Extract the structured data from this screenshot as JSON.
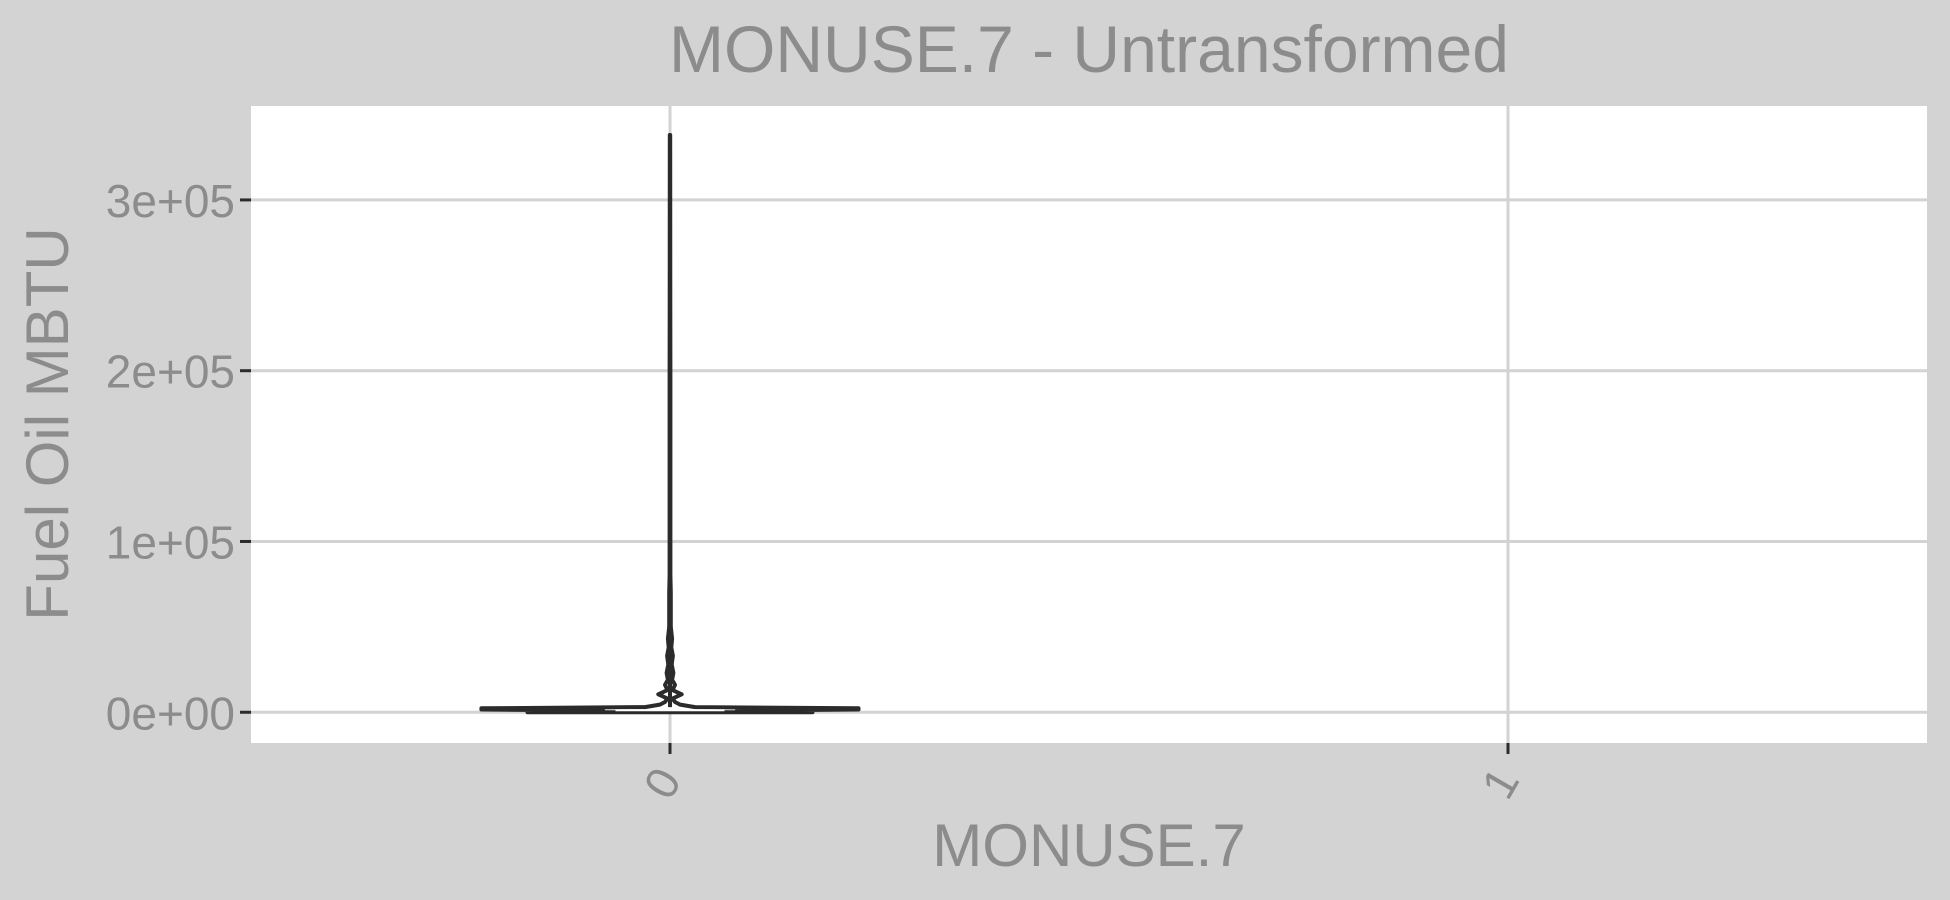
{
  "colors": {
    "panel_background": "#d3d3d3",
    "plot_background": "#ffffff",
    "gridline": "#d3d3d3",
    "text": "#8c8c8c",
    "violin_stroke": "#2b2b2b",
    "tick": "#2b2b2b"
  },
  "chart_data": {
    "type": "violin",
    "title": "MONUSE.7 - Untransformed",
    "xlabel": "MONUSE.7",
    "ylabel": "Fuel Oil MBTU",
    "categories": [
      "0",
      "1"
    ],
    "ylim": [
      -18000,
      355000
    ],
    "yticks": [
      0,
      100000,
      200000,
      300000
    ],
    "ytick_labels": [
      "0e+00",
      "1e+05",
      "2e+05",
      "3e+05"
    ],
    "grid": true,
    "legend": "none",
    "violins": [
      {
        "category": "0",
        "max": 338000,
        "density_profile": [
          [
            0,
            0.34
          ],
          [
            500,
            0.34
          ],
          [
            1000,
            0.16
          ],
          [
            1600,
            0.45
          ],
          [
            2300,
            0.45
          ],
          [
            3000,
            0.06
          ],
          [
            4500,
            0.024
          ],
          [
            6000,
            0.012
          ],
          [
            8000,
            0.006
          ],
          [
            10500,
            0.028
          ],
          [
            13000,
            0.006
          ],
          [
            16000,
            0.012
          ],
          [
            19000,
            0.005
          ],
          [
            23000,
            0.008
          ],
          [
            28000,
            0.004
          ],
          [
            33000,
            0.007
          ],
          [
            38000,
            0.003
          ],
          [
            43000,
            0.005
          ],
          [
            50000,
            0.002
          ],
          [
            60000,
            0.002
          ],
          [
            70000,
            0.002
          ],
          [
            80000,
            0.001
          ],
          [
            100000,
            0.001
          ],
          [
            120000,
            0.001
          ],
          [
            140000,
            0.001
          ],
          [
            165000,
            0.001
          ],
          [
            200000,
            0.001
          ],
          [
            240000,
            0.0008
          ],
          [
            338000,
            0.0005
          ]
        ],
        "median": 1200,
        "median_halfwidth": 0.13
      }
    ]
  }
}
